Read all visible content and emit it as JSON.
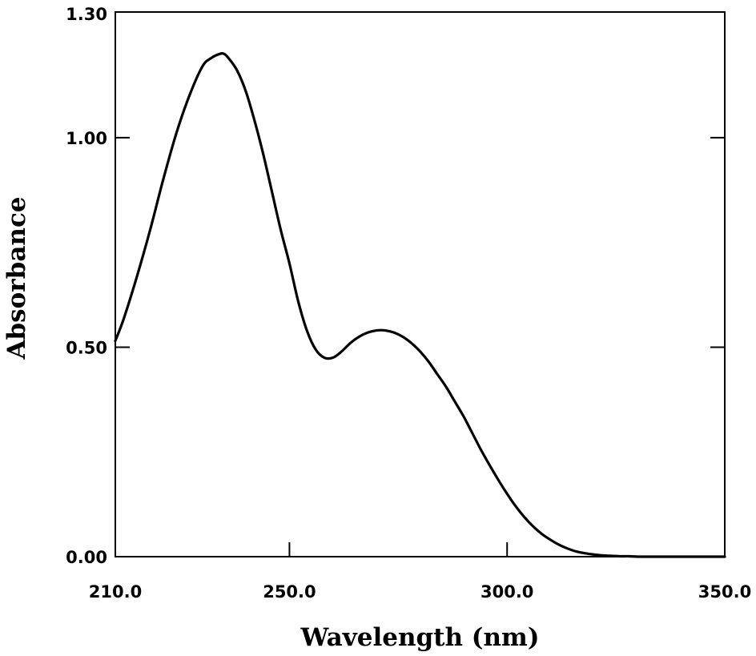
{
  "chart_data": {
    "type": "line",
    "title": "",
    "xlabel": "Wavelength (nm)",
    "ylabel": "Absorbance",
    "xlim": [
      210,
      350
    ],
    "ylim": [
      0,
      1.3
    ],
    "xticks": [
      210,
      250,
      300,
      350
    ],
    "xtick_labels": [
      "210.0",
      "250.0",
      "300.0",
      "350.0"
    ],
    "yticks": [
      0,
      0.5,
      1.0,
      1.3
    ],
    "ytick_labels": [
      "0.00",
      "0.50",
      "1.00",
      "1.30"
    ],
    "grid": false,
    "legend": false,
    "colors": {
      "line": "#000000",
      "axis": "#000000",
      "background": "#ffffff"
    },
    "series": [
      {
        "x": [
          210,
          212,
          215,
          218,
          221,
          224,
          227,
          230,
          232,
          234,
          235,
          236,
          238,
          240,
          242,
          244,
          246,
          248,
          250,
          252,
          254,
          256,
          258,
          260,
          262,
          264,
          266,
          268,
          270,
          272,
          274,
          276,
          278,
          280,
          282,
          284,
          286,
          288,
          290,
          292,
          294,
          296,
          298,
          300,
          302,
          304,
          306,
          308,
          310,
          312,
          314,
          316,
          318,
          320,
          322,
          324,
          326,
          328,
          330,
          332,
          334,
          336,
          338,
          340,
          345,
          350
        ],
        "y": [
          0.515,
          0.57,
          0.67,
          0.78,
          0.9,
          1.01,
          1.1,
          1.17,
          1.19,
          1.2,
          1.2,
          1.19,
          1.16,
          1.11,
          1.04,
          0.96,
          0.87,
          0.78,
          0.7,
          0.61,
          0.54,
          0.495,
          0.475,
          0.475,
          0.49,
          0.51,
          0.525,
          0.535,
          0.54,
          0.54,
          0.535,
          0.525,
          0.51,
          0.49,
          0.465,
          0.435,
          0.405,
          0.37,
          0.335,
          0.295,
          0.255,
          0.218,
          0.183,
          0.15,
          0.12,
          0.094,
          0.072,
          0.054,
          0.04,
          0.028,
          0.019,
          0.012,
          0.008,
          0.005,
          0.003,
          0.002,
          0.001,
          0.001,
          0.0,
          0.0,
          0.0,
          0.0,
          0.0,
          0.0,
          0.0,
          0.0
        ]
      }
    ]
  }
}
